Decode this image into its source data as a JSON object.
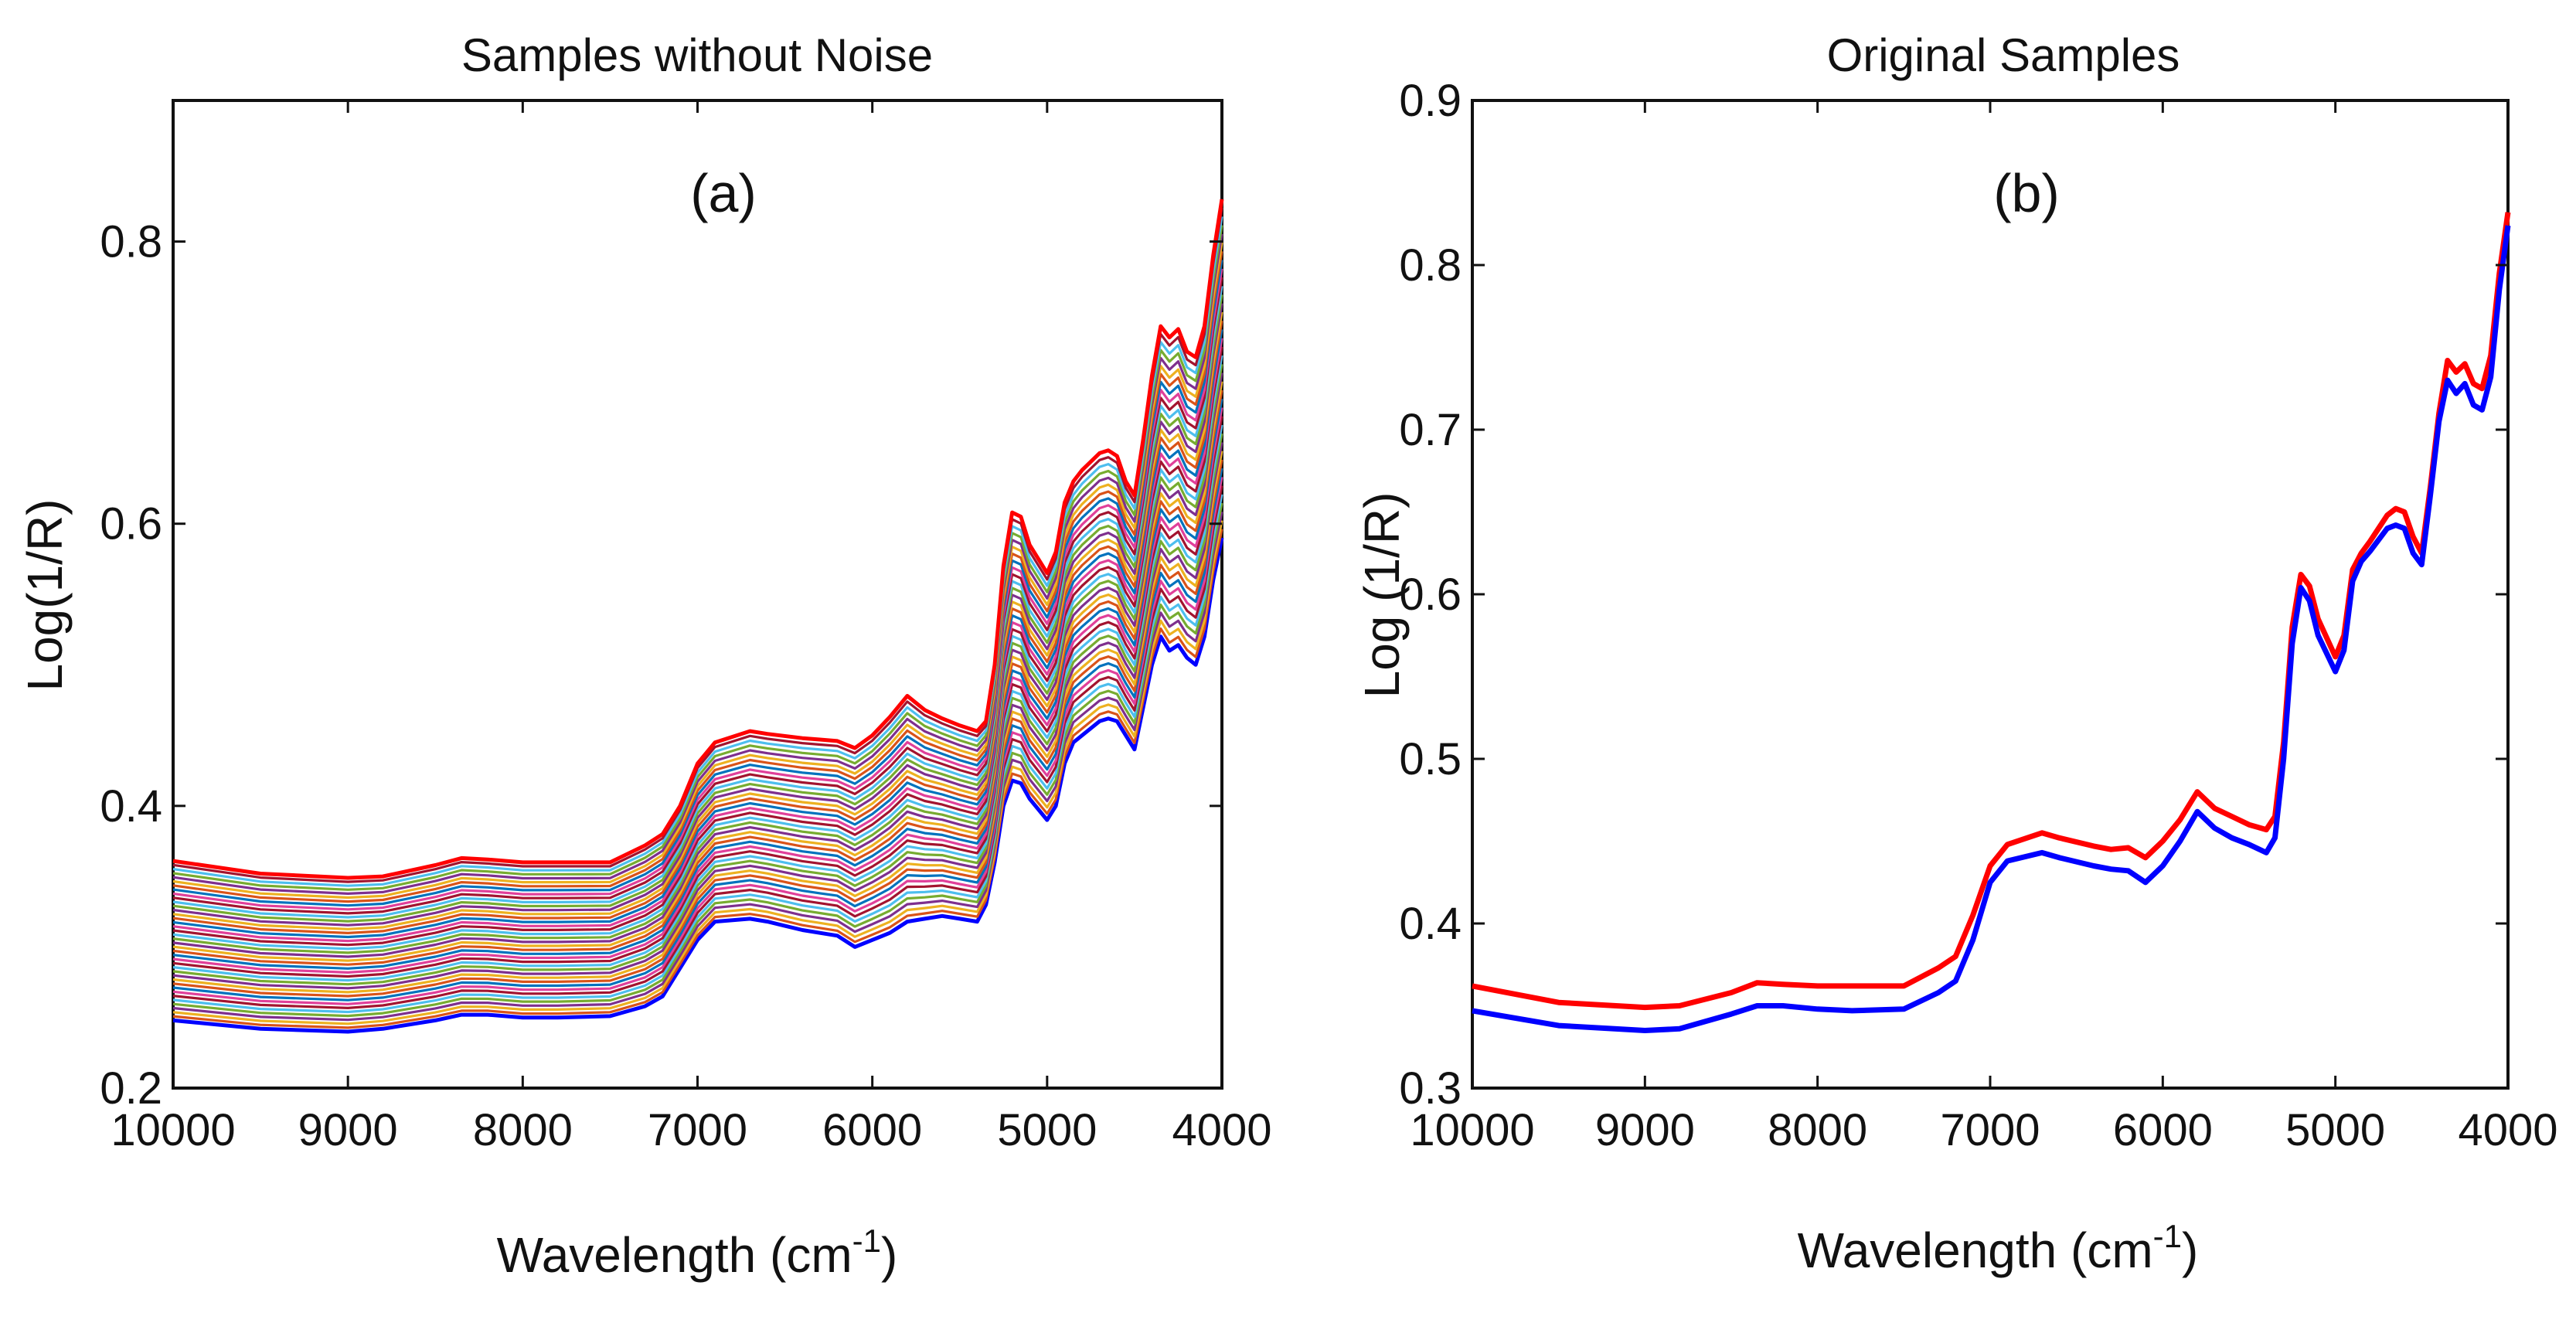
{
  "chart_data": [
    {
      "type": "line",
      "panel_label": "(a)",
      "title": "Samples without Noise",
      "xlabel": "Wavelength (cm",
      "xlabel_sup": "-1",
      "xlabel_end": ")",
      "ylabel": "Log(1/R)",
      "xlim": [
        10000,
        4000
      ],
      "x_reversed": true,
      "ylim": [
        0.2,
        0.9
      ],
      "x_ticks": [
        10000,
        9000,
        8000,
        7000,
        6000,
        5000,
        4000
      ],
      "x_tick_labels": [
        "10000",
        "9000",
        "8000",
        "7000",
        "6000",
        "5000",
        "4000"
      ],
      "y_ticks": [
        0.2,
        0.4,
        0.6,
        0.8
      ],
      "y_tick_labels": [
        "0.2",
        "0.4",
        "0.6",
        "0.8"
      ],
      "grid": false,
      "legend": "none",
      "series_colors": [
        "#ff0000",
        "#0072bd",
        "#d95319",
        "#edb120",
        "#7e2f8e",
        "#77ac30",
        "#4dbeee",
        "#a2142f",
        "#e0409a",
        "#0000ff"
      ],
      "top_curve": {
        "x": [
          10000,
          9500,
          9000,
          8800,
          8500,
          8350,
          8200,
          8000,
          7800,
          7500,
          7300,
          7200,
          7100,
          7000,
          6900,
          6700,
          6600,
          6400,
          6300,
          6200,
          6100,
          6000,
          5900,
          5800,
          5700,
          5600,
          5500,
          5400,
          5350,
          5300,
          5250,
          5200,
          5150,
          5100,
          5000,
          4950,
          4900,
          4850,
          4800,
          4700,
          4650,
          4600,
          4550,
          4500,
          4450,
          4400,
          4350,
          4300,
          4250,
          4200,
          4150,
          4100,
          4050,
          4000
        ],
        "y": [
          0.361,
          0.352,
          0.349,
          0.35,
          0.358,
          0.363,
          0.362,
          0.36,
          0.36,
          0.36,
          0.372,
          0.38,
          0.4,
          0.43,
          0.445,
          0.453,
          0.451,
          0.448,
          0.447,
          0.446,
          0.441,
          0.45,
          0.463,
          0.478,
          0.468,
          0.462,
          0.457,
          0.453,
          0.46,
          0.5,
          0.57,
          0.608,
          0.605,
          0.585,
          0.565,
          0.58,
          0.615,
          0.63,
          0.638,
          0.65,
          0.652,
          0.648,
          0.63,
          0.62,
          0.66,
          0.705,
          0.74,
          0.732,
          0.738,
          0.722,
          0.718,
          0.74,
          0.79,
          0.83
        ]
      },
      "bottom_curve": {
        "x": [
          10000,
          9500,
          9000,
          8800,
          8500,
          8350,
          8200,
          8000,
          7800,
          7500,
          7300,
          7200,
          7100,
          7000,
          6900,
          6700,
          6600,
          6400,
          6300,
          6200,
          6100,
          6000,
          5900,
          5800,
          5700,
          5600,
          5500,
          5400,
          5350,
          5300,
          5250,
          5200,
          5150,
          5100,
          5000,
          4950,
          4900,
          4850,
          4800,
          4700,
          4650,
          4600,
          4550,
          4500,
          4450,
          4400,
          4350,
          4300,
          4250,
          4200,
          4150,
          4100,
          4050,
          4000
        ],
        "y": [
          0.248,
          0.242,
          0.24,
          0.242,
          0.248,
          0.252,
          0.252,
          0.25,
          0.25,
          0.251,
          0.258,
          0.265,
          0.285,
          0.305,
          0.318,
          0.32,
          0.318,
          0.312,
          0.31,
          0.308,
          0.3,
          0.305,
          0.31,
          0.318,
          0.32,
          0.322,
          0.32,
          0.318,
          0.33,
          0.36,
          0.4,
          0.418,
          0.416,
          0.405,
          0.39,
          0.4,
          0.43,
          0.445,
          0.45,
          0.46,
          0.462,
          0.46,
          0.45,
          0.44,
          0.47,
          0.5,
          0.52,
          0.51,
          0.514,
          0.505,
          0.5,
          0.52,
          0.56,
          0.59
        ]
      },
      "n_curves": 40
    },
    {
      "type": "line",
      "panel_label": "(b)",
      "title": "Original Samples",
      "xlabel": "Wavelength (cm",
      "xlabel_sup": "-1",
      "xlabel_end": ")",
      "ylabel": "Log (1/R)",
      "xlim": [
        10000,
        4000
      ],
      "x_reversed": true,
      "ylim": [
        0.3,
        0.9
      ],
      "x_ticks": [
        10000,
        9000,
        8000,
        7000,
        6000,
        5000,
        4000
      ],
      "x_tick_labels": [
        "10000",
        "9000",
        "8000",
        "7000",
        "6000",
        "5000",
        "4000"
      ],
      "y_ticks": [
        0.3,
        0.4,
        0.5,
        0.6,
        0.7,
        0.8,
        0.9
      ],
      "y_tick_labels": [
        "0.3",
        "0.4",
        "0.5",
        "0.6",
        "0.7",
        "0.8",
        "0.9"
      ],
      "grid": false,
      "legend": "none",
      "series": [
        {
          "color": "#ff0000",
          "x": [
            10000,
            9500,
            9000,
            8800,
            8500,
            8350,
            8200,
            8000,
            7800,
            7500,
            7300,
            7200,
            7100,
            7000,
            6900,
            6700,
            6600,
            6400,
            6300,
            6200,
            6100,
            6000,
            5900,
            5800,
            5700,
            5600,
            5500,
            5400,
            5350,
            5300,
            5250,
            5200,
            5150,
            5100,
            5000,
            4950,
            4900,
            4850,
            4800,
            4700,
            4650,
            4600,
            4550,
            4500,
            4450,
            4400,
            4350,
            4300,
            4250,
            4200,
            4150,
            4100,
            4050,
            4000
          ],
          "y": [
            0.362,
            0.352,
            0.349,
            0.35,
            0.358,
            0.364,
            0.363,
            0.362,
            0.362,
            0.362,
            0.373,
            0.38,
            0.405,
            0.435,
            0.448,
            0.455,
            0.452,
            0.447,
            0.445,
            0.446,
            0.44,
            0.45,
            0.463,
            0.48,
            0.47,
            0.465,
            0.46,
            0.457,
            0.465,
            0.51,
            0.58,
            0.612,
            0.605,
            0.585,
            0.562,
            0.575,
            0.615,
            0.625,
            0.632,
            0.648,
            0.652,
            0.65,
            0.635,
            0.625,
            0.665,
            0.71,
            0.742,
            0.735,
            0.74,
            0.728,
            0.725,
            0.745,
            0.795,
            0.832
          ]
        },
        {
          "color": "#0000ff",
          "x": [
            10000,
            9500,
            9000,
            8800,
            8500,
            8350,
            8200,
            8000,
            7800,
            7500,
            7300,
            7200,
            7100,
            7000,
            6900,
            6700,
            6600,
            6400,
            6300,
            6200,
            6100,
            6000,
            5900,
            5800,
            5700,
            5600,
            5500,
            5400,
            5350,
            5300,
            5250,
            5200,
            5150,
            5100,
            5000,
            4950,
            4900,
            4850,
            4800,
            4700,
            4650,
            4600,
            4550,
            4500,
            4450,
            4400,
            4350,
            4300,
            4250,
            4200,
            4150,
            4100,
            4050,
            4000
          ],
          "y": [
            0.347,
            0.338,
            0.335,
            0.336,
            0.345,
            0.35,
            0.35,
            0.348,
            0.347,
            0.348,
            0.358,
            0.365,
            0.39,
            0.425,
            0.438,
            0.443,
            0.44,
            0.435,
            0.433,
            0.432,
            0.425,
            0.435,
            0.45,
            0.468,
            0.458,
            0.452,
            0.448,
            0.443,
            0.452,
            0.5,
            0.57,
            0.604,
            0.596,
            0.575,
            0.553,
            0.566,
            0.608,
            0.62,
            0.626,
            0.64,
            0.642,
            0.64,
            0.625,
            0.618,
            0.66,
            0.705,
            0.73,
            0.722,
            0.728,
            0.715,
            0.712,
            0.732,
            0.785,
            0.824
          ]
        }
      ]
    }
  ]
}
